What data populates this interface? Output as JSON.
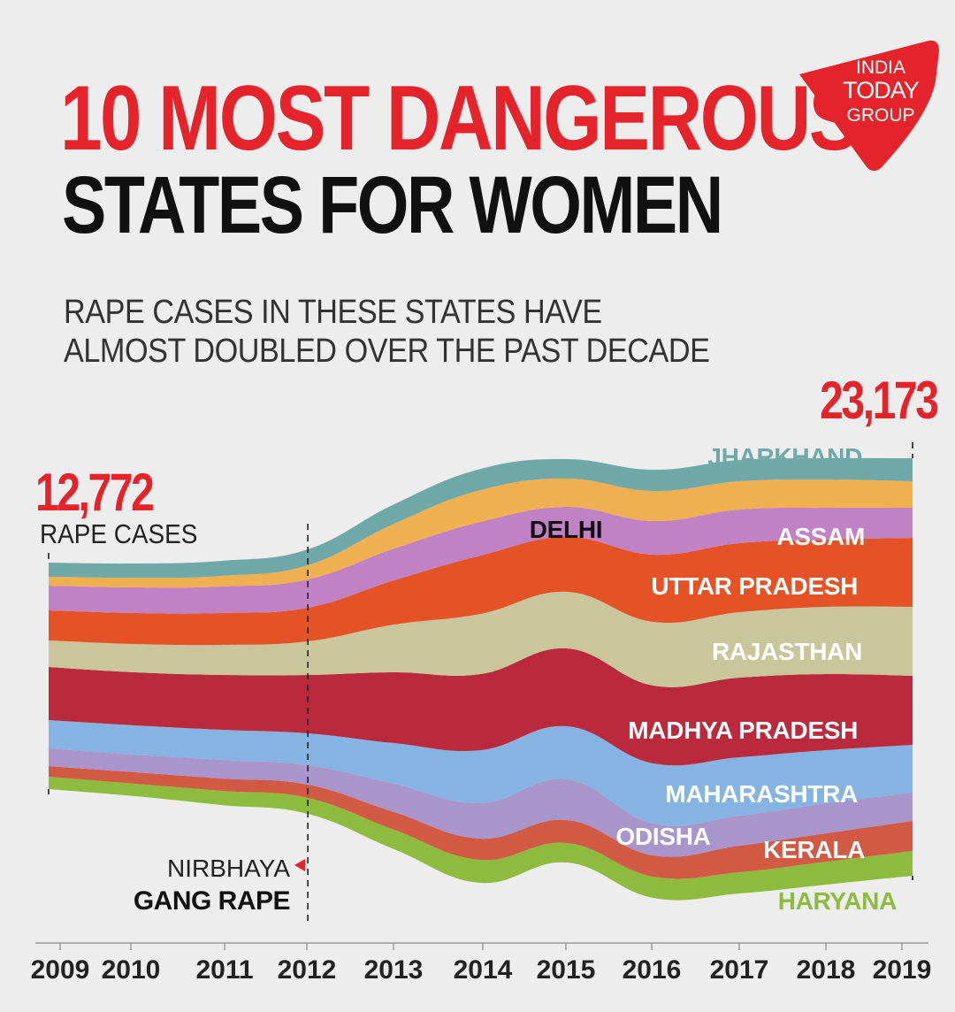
{
  "header": {
    "title_line1": "10 MOST DANGEROUS",
    "title_line2": "STATES FOR WOMEN",
    "subtitle_line1": "RAPE CASES IN THESE STATES HAVE",
    "subtitle_line2": "ALMOST DOUBLED OVER THE PAST DECADE"
  },
  "logo": {
    "line1": "INDIA",
    "line2": "TODAY",
    "line3": "GROUP",
    "color": "#e4242a"
  },
  "annotations": {
    "start_value": "12,772",
    "start_label": "RAPE CASES",
    "end_value": "23,173",
    "event_line1": "NIRBHAYA",
    "event_line2": "GANG RAPE"
  },
  "colors": {
    "accent": "#e4242a",
    "background": "#ededee"
  },
  "chart_data": {
    "type": "area",
    "subtype": "streamgraph",
    "x": [
      2009,
      2010,
      2011,
      2012,
      2013,
      2014,
      2015,
      2016,
      2017,
      2018,
      2019
    ],
    "tick_labels": [
      "2009",
      "2010",
      "2011",
      "2012",
      "2013",
      "2014",
      "2015",
      "2016",
      "2017",
      "2018",
      "2019"
    ],
    "totals": {
      "2009": 12772,
      "2019": 23173
    },
    "event": {
      "x": 2012,
      "label": "NIRBHAYA GANG RAPE"
    },
    "series": [
      {
        "name": "HARYANA",
        "color": "#8dbb3e",
        "label_color": "#8dbb3e",
        "values": [
          700,
          700,
          800,
          900,
          1100,
          1300,
          1100,
          1200,
          1200,
          1300,
          1400
        ]
      },
      {
        "name": "KERALA",
        "color": "#d25a45",
        "label_color": "#ffffff",
        "values": [
          600,
          650,
          700,
          750,
          1000,
          1200,
          1300,
          1200,
          1500,
          1600,
          1700
        ]
      },
      {
        "name": "ODISHA",
        "color": "#a795cc",
        "label_color": "#ffffff",
        "values": [
          1000,
          1000,
          1050,
          1100,
          1600,
          2000,
          2300,
          1800,
          1700,
          1700,
          1600
        ]
      },
      {
        "name": "MAHARASHTRA",
        "color": "#85b3e2",
        "label_color": "#ffffff",
        "values": [
          1600,
          1650,
          1700,
          1800,
          2300,
          3000,
          3000,
          3400,
          3300,
          3000,
          2700
        ]
      },
      {
        "name": "MADHYA PRADESH",
        "color": "#bb2a3c",
        "label_color": "#ffffff",
        "values": [
          3000,
          3000,
          3100,
          3300,
          4000,
          4300,
          4400,
          4400,
          4500,
          4300,
          3900
        ]
      },
      {
        "name": "RAJASTHAN",
        "color": "#c8c69a",
        "label_color": "#ffffff",
        "values": [
          1500,
          1600,
          1700,
          1900,
          2700,
          3400,
          3200,
          3600,
          3700,
          3800,
          3900
        ]
      },
      {
        "name": "UTTAR PRADESH",
        "color": "#e45226",
        "label_color": "#ffffff",
        "values": [
          1700,
          1750,
          1800,
          1900,
          2500,
          3300,
          3100,
          3800,
          3900,
          3800,
          3900
        ]
      },
      {
        "name": "ASSAM",
        "color": "#c081c5",
        "label_color": "#ffffff",
        "values": [
          1400,
          1450,
          1500,
          1600,
          1800,
          1900,
          1700,
          1900,
          1900,
          1800,
          1700
        ]
      },
      {
        "name": "DELHI",
        "color": "#f0b050",
        "label_color": "#111111",
        "values": [
          500,
          550,
          600,
          800,
          1400,
          1800,
          1600,
          1700,
          1600,
          1600,
          1500
        ]
      },
      {
        "name": "JHARKHAND",
        "color": "#6fa8a9",
        "label_color": "#6fa8a9",
        "values": [
          800,
          800,
          850,
          900,
          1100,
          1200,
          1100,
          1200,
          1200,
          1200,
          1300
        ]
      }
    ]
  }
}
